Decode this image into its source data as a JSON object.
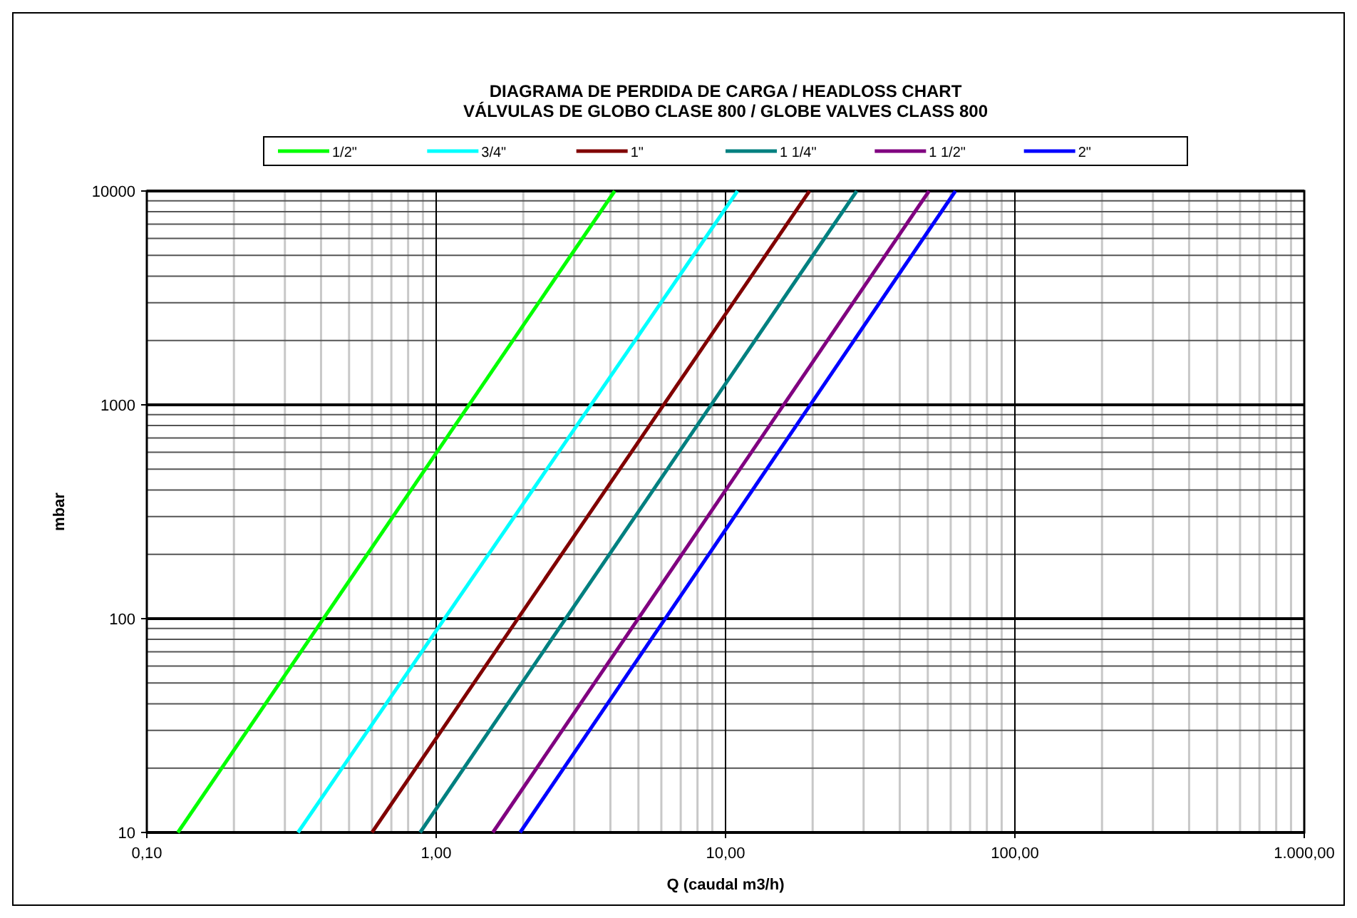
{
  "chart_data": {
    "type": "line",
    "title": "DIAGRAMA DE PERDIDA DE CARGA / HEADLOSS CHART",
    "subtitle": "VÁLVULAS  DE  GLOBO CLASE 800 / GLOBE  VALVES CLASS 800",
    "xlabel": "Q (caudal m3/h)",
    "ylabel": "mbar",
    "log": "xy",
    "grid": true,
    "legend": "top",
    "line_style": "solid",
    "marker": "none",
    "xlim": [
      0.1,
      1000
    ],
    "ylim": [
      10,
      10000
    ],
    "xticks": [
      {
        "value": 0.1,
        "label": "0,10"
      },
      {
        "value": 1,
        "label": "1,00"
      },
      {
        "value": 10,
        "label": "10,00"
      },
      {
        "value": 100,
        "label": "100,00"
      },
      {
        "value": 1000,
        "label": "1.000,00"
      }
    ],
    "yticks": [
      10,
      100,
      1000,
      10000
    ],
    "series": [
      {
        "name": "1/2\"",
        "color": "#00ff00",
        "x": [
          0.128,
          4.14
        ],
        "values": [
          10,
          10000
        ]
      },
      {
        "name": "3/4\"",
        "color": "#00ffff",
        "x": [
          0.333,
          11.0
        ],
        "values": [
          10,
          10000
        ]
      },
      {
        "name": "1\"",
        "color": "#800000",
        "x": [
          0.6,
          19.5
        ],
        "values": [
          10,
          10000
        ]
      },
      {
        "name": "1 1/4\"",
        "color": "#008080",
        "x": [
          0.88,
          28.4
        ],
        "values": [
          10,
          10000
        ]
      },
      {
        "name": "1 1/2\"",
        "color": "#800080",
        "x": [
          1.57,
          50.5
        ],
        "values": [
          10,
          10000
        ]
      },
      {
        "name": "2\"",
        "color": "#0000ff",
        "x": [
          1.95,
          62.3
        ],
        "values": [
          10,
          10000
        ]
      }
    ]
  }
}
